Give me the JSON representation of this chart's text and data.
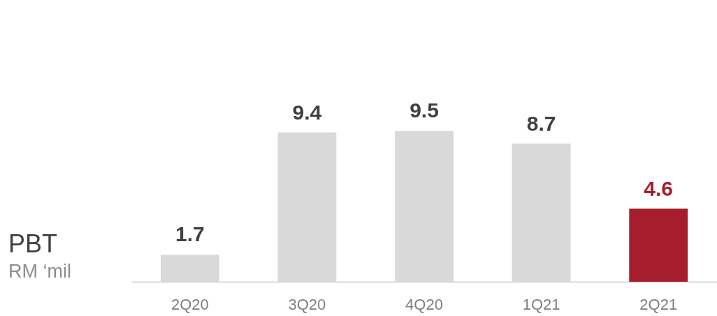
{
  "chart_data": {
    "type": "bar",
    "title": "PBT",
    "subtitle": "RM ‘mil",
    "categories": [
      "2Q20",
      "3Q20",
      "4Q20",
      "1Q21",
      "2Q21"
    ],
    "values": [
      1.7,
      9.4,
      9.5,
      8.7,
      4.6
    ],
    "colors": [
      "#d9d9d9",
      "#d9d9d9",
      "#d9d9d9",
      "#d9d9d9",
      "#a61e2d"
    ],
    "data_labels": true
  }
}
